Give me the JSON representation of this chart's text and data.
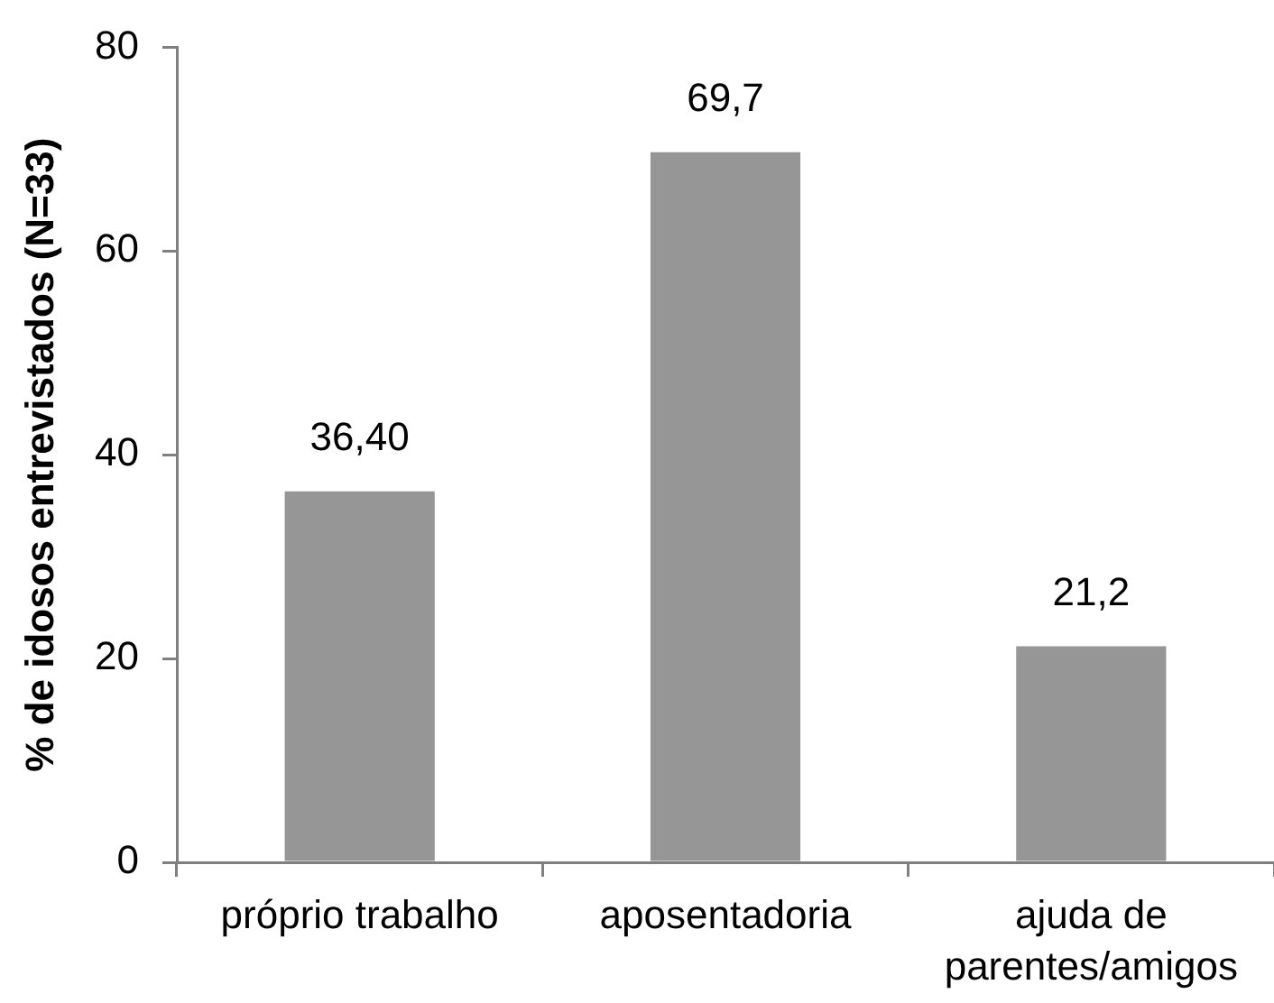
{
  "chart_data": {
    "type": "bar",
    "ylabel": "% de idosos entrevistados (N=33)",
    "categories": [
      "próprio trabalho",
      "aposentadoria",
      "ajuda de parentes/amigos"
    ],
    "values": [
      36.4,
      69.7,
      21.2
    ],
    "value_labels": [
      "36,40",
      "69,7",
      "21,2"
    ],
    "color": "#969696",
    "ylim": [
      0,
      80
    ],
    "yticks": [
      0,
      20,
      40,
      60,
      80
    ]
  }
}
